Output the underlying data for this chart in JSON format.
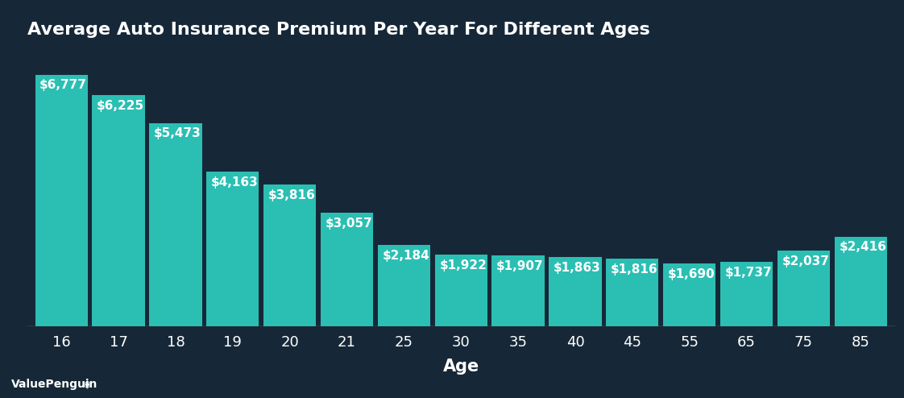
{
  "title": "Average Auto Insurance Premium Per Year For Different Ages",
  "xlabel": "Age",
  "ages": [
    "16",
    "17",
    "18",
    "19",
    "20",
    "21",
    "25",
    "30",
    "35",
    "40",
    "45",
    "55",
    "65",
    "75",
    "85"
  ],
  "values": [
    6777,
    6225,
    5473,
    4163,
    3816,
    3057,
    2184,
    1922,
    1907,
    1863,
    1816,
    1690,
    1737,
    2037,
    2416
  ],
  "labels": [
    "$6,777",
    "$6,225",
    "$5,473",
    "$4,163",
    "$3,816",
    "$3,057",
    "$2,184",
    "$1,922",
    "$1,907",
    "$1,863",
    "$1,816",
    "$1,690",
    "$1,737",
    "$2,037",
    "$2,416"
  ],
  "bar_color": "#2bbfb3",
  "background_color": "#162838",
  "text_color": "#ffffff",
  "title_fontsize": 16,
  "label_fontsize": 11,
  "tick_fontsize": 13,
  "xlabel_fontsize": 15,
  "watermark": "ValuePenguin",
  "ylim": [
    0,
    7500
  ],
  "bar_width": 0.92
}
